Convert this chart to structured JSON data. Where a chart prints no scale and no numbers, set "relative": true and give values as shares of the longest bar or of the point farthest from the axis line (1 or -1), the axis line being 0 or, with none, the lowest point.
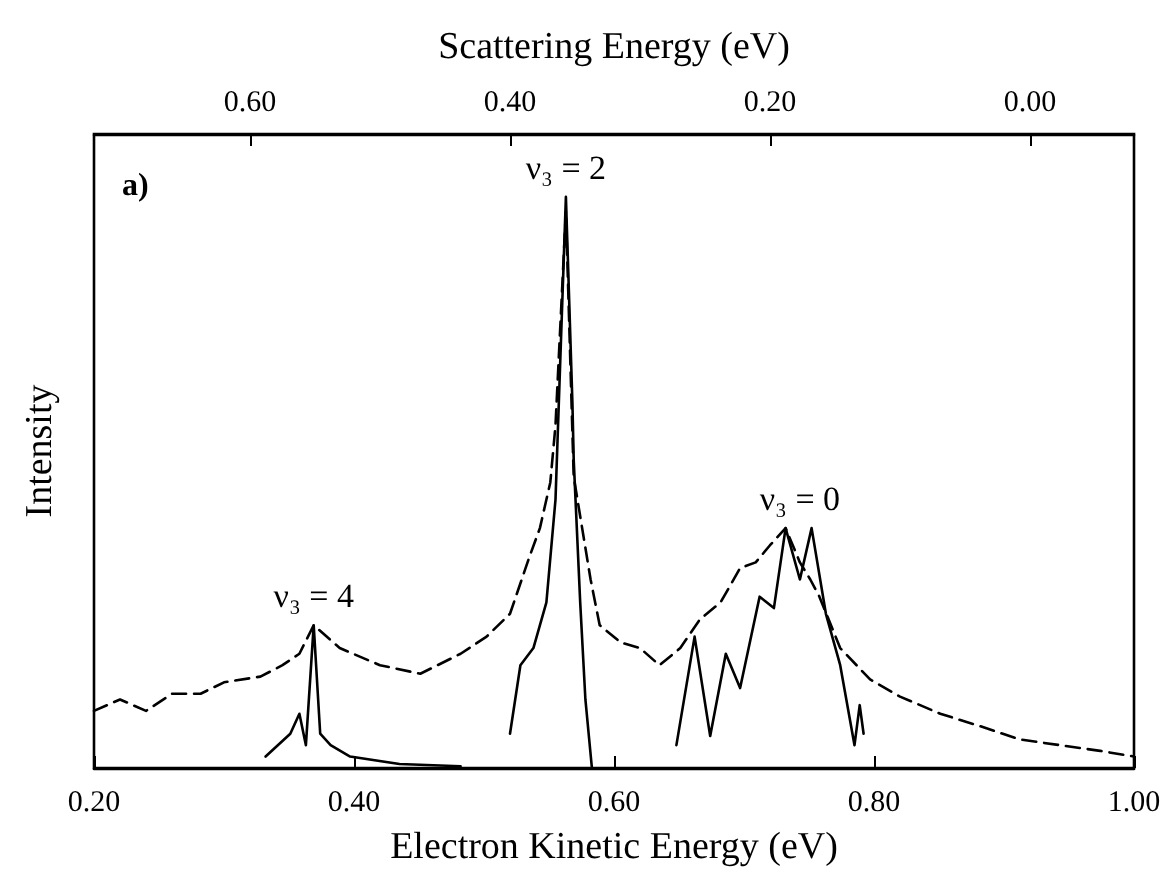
{
  "chart_data": {
    "type": "line",
    "relative": true,
    "xlabel": "Electron Kinetic Energy (eV)",
    "ylabel": "Intensity",
    "x2label": "Scattering Energy (eV)",
    "xlim": [
      0.2,
      1.0
    ],
    "xticks": [
      {
        "value": 0.2,
        "label": "0.20"
      },
      {
        "value": 0.4,
        "label": "0.40"
      },
      {
        "value": 0.6,
        "label": "0.60"
      },
      {
        "value": 0.8,
        "label": "0.80"
      },
      {
        "value": 1.0,
        "label": "1.00"
      }
    ],
    "x2lim": [
      0.72,
      -0.08
    ],
    "x2ticks": [
      {
        "value": 0.6,
        "label": "0.60"
      },
      {
        "value": 0.4,
        "label": "0.40"
      },
      {
        "value": 0.2,
        "label": "0.20"
      },
      {
        "value": 0.0,
        "label": "0.00"
      }
    ],
    "marker": "none",
    "grid": false,
    "series": [
      {
        "color": "#000000",
        "line_style": "dashed",
        "x": [
          0.2,
          0.22,
          0.24,
          0.26,
          0.282,
          0.3,
          0.328,
          0.345,
          0.358,
          0.369,
          0.389,
          0.42,
          0.451,
          0.482,
          0.502,
          0.52,
          0.535,
          0.543,
          0.551,
          0.555,
          0.563,
          0.569,
          0.582,
          0.589,
          0.605,
          0.62,
          0.635,
          0.651,
          0.666,
          0.682,
          0.697,
          0.709,
          0.72,
          0.732,
          0.743,
          0.751,
          0.758,
          0.774,
          0.797,
          0.82,
          0.851,
          0.882,
          0.912,
          0.943,
          0.974,
          1.0
        ],
        "values": [
          0.1,
          0.12,
          0.1,
          0.13,
          0.13,
          0.15,
          0.16,
          0.18,
          0.2,
          0.25,
          0.21,
          0.18,
          0.165,
          0.2,
          0.23,
          0.27,
          0.37,
          0.42,
          0.5,
          0.6,
          0.975,
          0.51,
          0.33,
          0.25,
          0.22,
          0.21,
          0.18,
          0.21,
          0.26,
          0.29,
          0.35,
          0.36,
          0.39,
          0.42,
          0.36,
          0.33,
          0.3,
          0.21,
          0.155,
          0.125,
          0.095,
          0.073,
          0.05,
          0.04,
          0.03,
          0.02
        ]
      },
      {
        "color": "#000000",
        "line_style": "solid",
        "x": [
          0.332,
          0.351,
          0.358,
          0.363,
          0.369,
          0.374,
          0.382,
          0.397,
          0.435,
          0.482
        ],
        "values": [
          0.02,
          0.06,
          0.095,
          0.04,
          0.25,
          0.06,
          0.04,
          0.02,
          0.007,
          0.003
        ]
      },
      {
        "color": "#000000",
        "line_style": "solid",
        "x": [
          0.52,
          0.528,
          0.538,
          0.548,
          0.555,
          0.563,
          0.568,
          0.569,
          0.574,
          0.578,
          0.583
        ],
        "values": [
          0.06,
          0.18,
          0.21,
          0.29,
          0.47,
          1,
          0.64,
          0.54,
          0.29,
          0.12,
          0
        ]
      },
      {
        "color": "#000000",
        "line_style": "solid",
        "x": [
          0.648,
          0.662,
          0.674,
          0.686,
          0.697,
          0.712,
          0.723,
          0.732,
          0.743,
          0.752,
          0.763,
          0.774,
          0.785,
          0.789,
          0.792
        ],
        "values": [
          0.04,
          0.23,
          0.056,
          0.2,
          0.14,
          0.3,
          0.28,
          0.42,
          0.33,
          0.42,
          0.27,
          0.18,
          0.04,
          0.11,
          0.06
        ]
      }
    ],
    "annotations": [
      "a)",
      {
        "text": "ν₃ = 4",
        "x": 0.369,
        "y": 0.25
      },
      {
        "text": "ν₃ = 2",
        "x": 0.563,
        "y": 1
      },
      {
        "text": "ν₃ = 0",
        "x": 0.743,
        "y": 0.42
      }
    ]
  }
}
